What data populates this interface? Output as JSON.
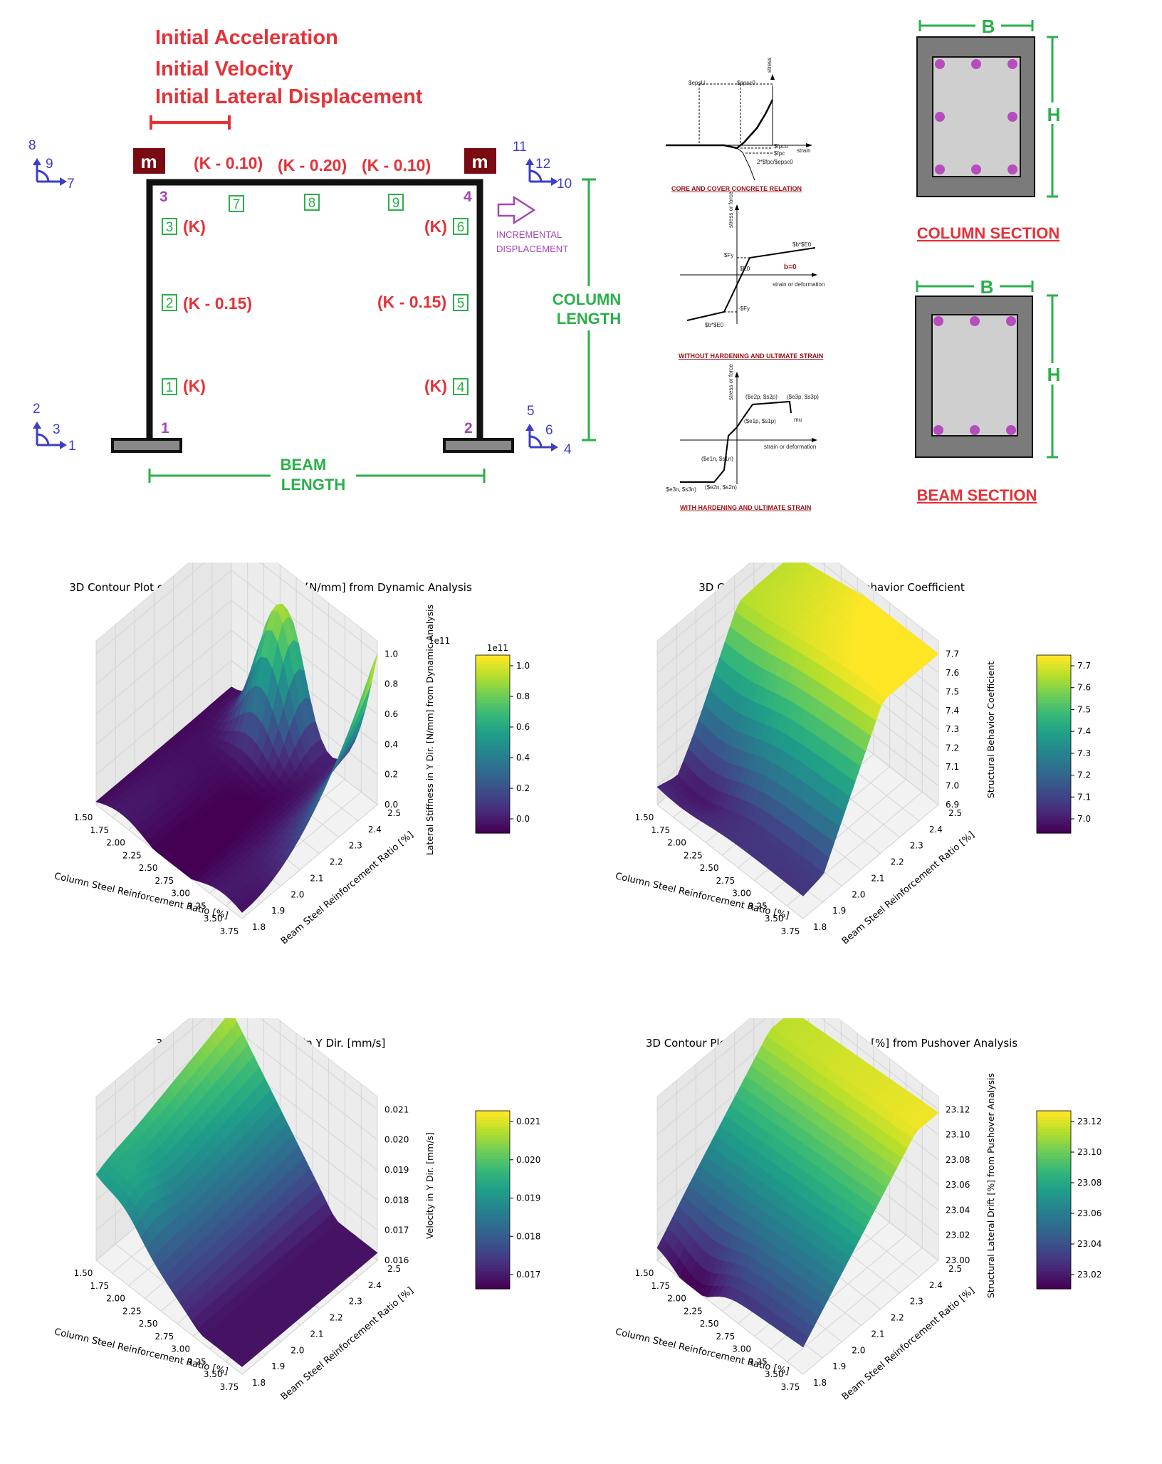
{
  "frame": {
    "initial_conditions": [
      "Initial Acceleration",
      "Initial Velocity",
      "Initial Lateral Displacement"
    ],
    "mass_label": "m",
    "beam_stiffness": [
      "(K - 0.10)",
      "(K - 0.20)",
      "(K - 0.10)"
    ],
    "column_stiffness_left": [
      "(K)",
      "(K - 0.15)",
      "(K)"
    ],
    "column_stiffness_right": [
      "(K)",
      "(K - 0.15)",
      "(K)"
    ],
    "node_labels": [
      "1",
      "2",
      "3",
      "4"
    ],
    "element_labels": [
      "1",
      "2",
      "3",
      "4",
      "5",
      "6",
      "7",
      "8",
      "9"
    ],
    "dof_labels": [
      "1",
      "2",
      "3",
      "4",
      "5",
      "6",
      "7",
      "8",
      "9",
      "10",
      "11",
      "12"
    ],
    "incremental_label": [
      "INCREMENTAL",
      "DISPLACEMENT"
    ],
    "column_length_label": [
      "COLUMN",
      "LENGTH"
    ],
    "beam_length_label": [
      "BEAM",
      "LENGTH"
    ]
  },
  "materials": {
    "concrete": {
      "caption": "CORE AND COVER CONCRETE RELATION",
      "labels": [
        "$epsU",
        "$epsc0",
        "stress",
        "strain",
        "$fpcu",
        "$fpc",
        "2*$fpc/$epsc0"
      ]
    },
    "steel_no_hardening": {
      "caption": "WITHOUT HARDENING AND ULTIMATE STRAIN",
      "labels": [
        "stress or force",
        "$Fy",
        "$E0",
        "$b*$E0",
        "b=0",
        "strain or deformation",
        "-$Fy",
        "$b*$E0"
      ]
    },
    "steel_hardening": {
      "caption": "WITH HARDENING AND ULTIMATE STRAIN",
      "labels": [
        "stress or force",
        "($e2p, $s2p)",
        "($e3p, $s3p)",
        "($e1p, $s1p)",
        "mu",
        "strain or deformation",
        "($e1n, $s1n)",
        "($e3n, $s3n)",
        "($e2n, $s2n)"
      ]
    }
  },
  "sections": {
    "column": {
      "title": "COLUMN SECTION",
      "width_label": "B",
      "height_label": "H"
    },
    "beam": {
      "title": "BEAM SECTION",
      "width_label": "B",
      "height_label": "H"
    }
  },
  "chart_data": [
    {
      "type": "surface",
      "title": "3D Contour Plot of Lateral Stiffness in Y Dir. [N/mm] from Dynamic Analysis",
      "xlabel": "Column Steel Reinforcement Ratio [%]",
      "ylabel": "Beam Steel Reinforcement Ratio [%]",
      "zlabel": "Lateral Stiffness in Y Dir. [N/mm] from Dynamic Analysis",
      "x_ticks": [
        "1.50",
        "1.75",
        "2.00",
        "2.25",
        "2.50",
        "2.75",
        "3.00",
        "3.25",
        "3.50",
        "3.75"
      ],
      "y_ticks": [
        "1.8",
        "1.9",
        "2.0",
        "2.1",
        "2.2",
        "2.3",
        "2.4",
        "2.5"
      ],
      "z_ticks": [
        "0.0",
        "0.2",
        "0.4",
        "0.6",
        "0.8",
        "1.0"
      ],
      "z_scale": "1e11",
      "colorbar_ticks": [
        "0.0",
        "0.2",
        "0.4",
        "0.6",
        "0.8",
        "1.0"
      ],
      "colorbar_scale": "1e11",
      "zlim": [
        0.0,
        1.05
      ],
      "colormap": "viridis"
    },
    {
      "type": "surface",
      "title": "3D Contour Plot of Structural Behavior Coefficient",
      "xlabel": "Column Steel Reinforcement Ratio [%]",
      "ylabel": "Beam Steel Reinforcement Ratio [%]",
      "zlabel": "Structural Behavior Coefficient",
      "x_ticks": [
        "1.50",
        "1.75",
        "2.00",
        "2.25",
        "2.50",
        "2.75",
        "3.00",
        "3.25",
        "3.50",
        "3.75"
      ],
      "y_ticks": [
        "1.8",
        "1.9",
        "2.0",
        "2.1",
        "2.2",
        "2.3",
        "2.4",
        "2.5"
      ],
      "z_ticks": [
        "6.9",
        "7.0",
        "7.1",
        "7.2",
        "7.3",
        "7.4",
        "7.5",
        "7.6",
        "7.7"
      ],
      "colorbar_ticks": [
        "7.0",
        "7.1",
        "7.2",
        "7.3",
        "7.4",
        "7.5",
        "7.6",
        "7.7"
      ],
      "zlim": [
        6.9,
        7.72
      ],
      "colormap": "viridis"
    },
    {
      "type": "surface",
      "title": "3D Contour Plot of Velocity in Y Dir. [mm/s]",
      "xlabel": "Column Steel Reinforcement Ratio [%]",
      "ylabel": "Beam Steel Reinforcement Ratio [%]",
      "zlabel": "Velocity in Y Dir. [mm/s]",
      "x_ticks": [
        "1.50",
        "1.75",
        "2.00",
        "2.25",
        "2.50",
        "2.75",
        "3.00",
        "3.25",
        "3.50",
        "3.75"
      ],
      "y_ticks": [
        "1.8",
        "1.9",
        "2.0",
        "2.1",
        "2.2",
        "2.3",
        "2.4",
        "2.5"
      ],
      "z_ticks": [
        "0.016",
        "0.017",
        "0.018",
        "0.019",
        "0.020",
        "0.021"
      ],
      "colorbar_ticks": [
        "0.017",
        "0.018",
        "0.019",
        "0.020",
        "0.021"
      ],
      "zlim": [
        0.016,
        0.0212
      ],
      "colormap": "viridis"
    },
    {
      "type": "surface",
      "title": "3D Contour Plot of Structural Lateral Drift [%] from Pushover Analysis",
      "xlabel": "Column Steel Reinforcement Ratio [%]",
      "ylabel": "Beam Steel Reinforcement Ratio [%]",
      "zlabel": "Structural Lateral Drift [%] from Pushover Analysis",
      "x_ticks": [
        "1.50",
        "1.75",
        "2.00",
        "2.25",
        "2.50",
        "2.75",
        "3.00",
        "3.25",
        "3.50",
        "3.75"
      ],
      "y_ticks": [
        "1.8",
        "1.9",
        "2.0",
        "2.1",
        "2.2",
        "2.3",
        "2.4",
        "2.5"
      ],
      "z_ticks": [
        "23.00",
        "23.02",
        "23.04",
        "23.06",
        "23.08",
        "23.10",
        "23.12"
      ],
      "colorbar_ticks": [
        "23.02",
        "23.04",
        "23.06",
        "23.08",
        "23.10",
        "23.12"
      ],
      "zlim": [
        23.0,
        23.13
      ],
      "colormap": "viridis"
    }
  ],
  "colors": {
    "red": "#e53238",
    "green": "#2ab04a",
    "blue": "#3d3dc9",
    "purple": "#a545b6",
    "mass": "#7a0b12",
    "rebar": "#b64dbe"
  }
}
